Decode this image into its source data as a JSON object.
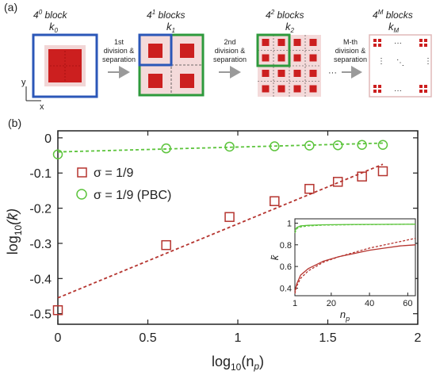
{
  "panel_a": {
    "label": "(a)",
    "blocks": [
      {
        "title_base": "4",
        "title_exp": "0",
        "title_word": "block",
        "k_base": "k",
        "k_sub": "0"
      },
      {
        "title_base": "4",
        "title_exp": "1",
        "title_word": "blocks",
        "k_base": "k",
        "k_sub": "1"
      },
      {
        "title_base": "4",
        "title_exp": "2",
        "title_word": "blocks",
        "k_base": "k",
        "k_sub": "2"
      },
      {
        "title_base": "4",
        "title_exp": "M",
        "title_word": "blocks",
        "k_base": "k",
        "k_sub": "M"
      }
    ],
    "steps": [
      {
        "line1": "1st",
        "line2": "division &",
        "line3": "separation"
      },
      {
        "line1": "2nd",
        "line2": "division &",
        "line3": "separation"
      },
      {
        "line1": "M-th",
        "line2": "division &",
        "line3": "separation"
      }
    ],
    "ellipsis": "···",
    "axis_x": "x",
    "axis_y": "y",
    "colors": {
      "blue": "#2b57b8",
      "green": "#2e9a3c",
      "pink": "#f4dada",
      "red": "#cc1f1f",
      "gray": "#9a9a9a"
    }
  },
  "panel_b": {
    "label": "(b)",
    "chart_data": {
      "type": "scatter",
      "xlabel_main": "log",
      "xlabel_sub": "10",
      "xlabel_arg": "(n",
      "xlabel_argsub": "p",
      "xlabel_close": ")",
      "ylabel_main": "log",
      "ylabel_sub": "10",
      "ylabel_arg": "(k̄)",
      "xlim": [
        0,
        2
      ],
      "ylim": [
        -0.53,
        0.02
      ],
      "xticks": [
        "0",
        "0.5",
        "1",
        "1.5",
        "2"
      ],
      "yticks": [
        "0",
        "-0.1",
        "-0.2",
        "-0.3",
        "-0.4",
        "-0.5"
      ],
      "series": [
        {
          "name": "σ = 1/9",
          "color": "#b5342f",
          "marker": "square",
          "x": [
            0,
            0.602,
            0.954,
            1.204,
            1.398,
            1.556,
            1.69,
            1.806
          ],
          "y": [
            -0.49,
            -0.305,
            -0.225,
            -0.18,
            -0.145,
            -0.125,
            -0.11,
            -0.095
          ],
          "fit": {
            "x0": 0,
            "y0": -0.455,
            "x1": 1.806,
            "y1": -0.075
          }
        },
        {
          "name": "σ = 1/9 (PBC)",
          "color": "#5cc43c",
          "marker": "circle",
          "x": [
            0,
            0.602,
            0.954,
            1.204,
            1.398,
            1.556,
            1.69,
            1.806
          ],
          "y": [
            -0.047,
            -0.03,
            -0.025,
            -0.024,
            -0.022,
            -0.021,
            -0.02,
            -0.02
          ],
          "fit": {
            "x0": 0,
            "y0": -0.04,
            "x1": 1.806,
            "y1": -0.015
          }
        }
      ],
      "inset": {
        "xlabel": "n",
        "xlabel_sub": "p",
        "ylabel": "k̄",
        "xlim": [
          1,
          64
        ],
        "ylim": [
          0.33,
          1.04
        ],
        "xticks": [
          "1",
          "20",
          "40",
          "60"
        ],
        "yticks": [
          "1",
          "0.8",
          "0.6",
          "0.4"
        ],
        "series": [
          {
            "name": "red-solid",
            "color": "#b5342f",
            "dash": false,
            "x": [
              1,
              2,
              4,
              8,
              16,
              24,
              32,
              40,
              48,
              56,
              64
            ],
            "y": [
              0.37,
              0.44,
              0.52,
              0.58,
              0.65,
              0.69,
              0.72,
              0.75,
              0.77,
              0.79,
              0.8
            ]
          },
          {
            "name": "red-dashed",
            "color": "#b5342f",
            "dash": true,
            "x": [
              1,
              2,
              4,
              8,
              16,
              24,
              32,
              40,
              48,
              56,
              64
            ],
            "y": [
              0.35,
              0.42,
              0.49,
              0.56,
              0.64,
              0.69,
              0.73,
              0.77,
              0.8,
              0.83,
              0.86
            ]
          },
          {
            "name": "green-solid",
            "color": "#5cc43c",
            "dash": false,
            "x": [
              1,
              2,
              4,
              8,
              16,
              32,
              64
            ],
            "y": [
              0.93,
              0.96,
              0.975,
              0.98,
              0.985,
              0.988,
              0.99
            ]
          },
          {
            "name": "green-dashed",
            "color": "#5cc43c",
            "dash": true,
            "x": [
              1,
              2,
              4,
              8,
              16,
              32,
              64
            ],
            "y": [
              0.91,
              0.95,
              0.965,
              0.975,
              0.982,
              0.986,
              0.99
            ]
          }
        ]
      }
    }
  }
}
